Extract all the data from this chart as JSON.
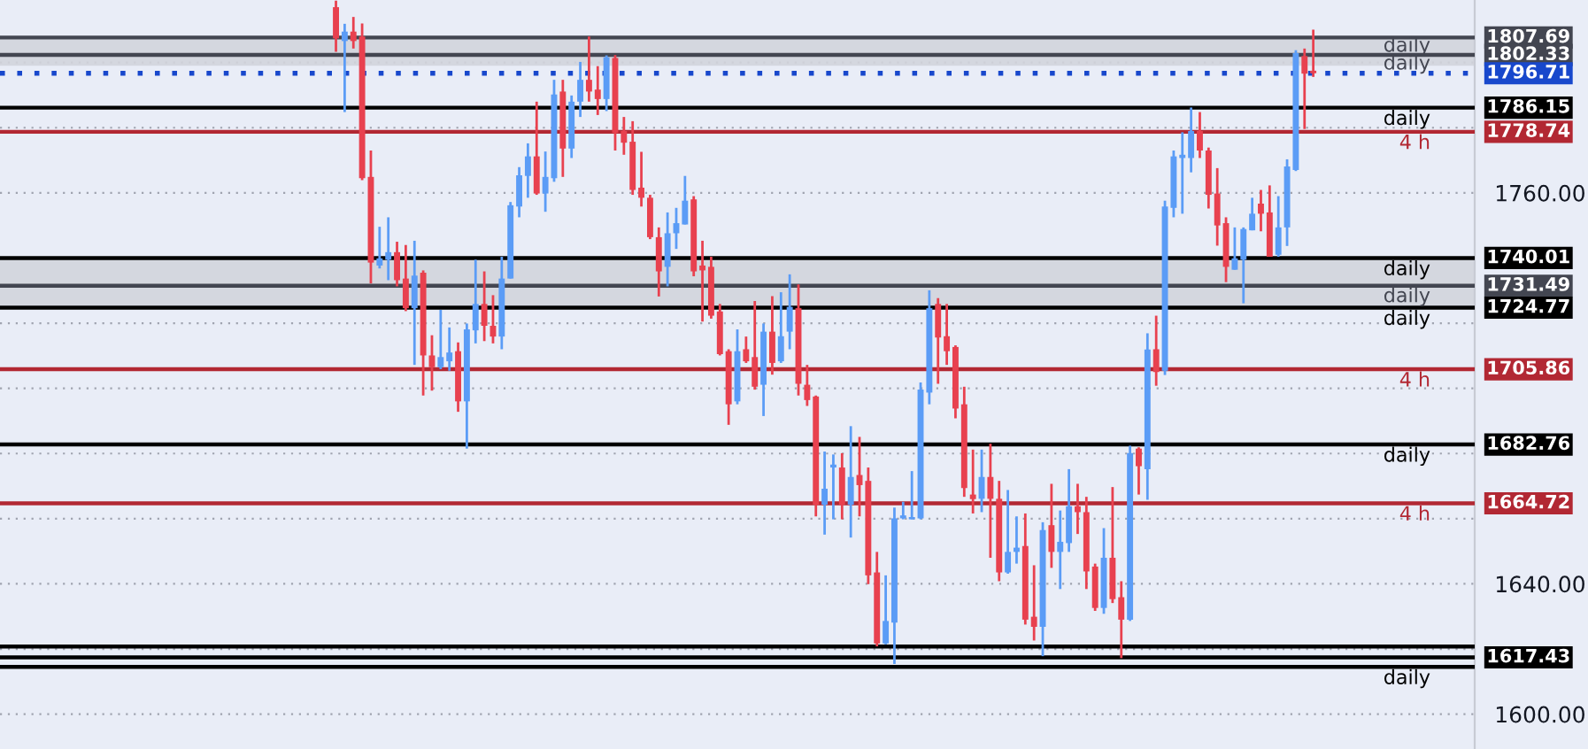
{
  "chart_data": {
    "type": "candlestick",
    "categories": [
      null,
      null,
      null,
      null,
      null,
      null,
      null,
      null,
      null,
      null,
      null,
      null,
      null,
      null,
      null,
      null,
      null,
      null,
      null,
      null,
      null,
      null,
      null,
      null,
      null,
      null,
      null,
      null,
      null,
      null,
      null,
      null,
      null,
      null,
      null,
      null,
      null,
      null,
      null,
      null,
      null,
      null,
      null,
      null,
      null,
      null,
      null,
      null,
      null,
      null,
      null,
      null,
      null,
      null,
      null,
      null,
      null,
      null,
      null,
      null,
      null,
      null,
      null,
      null,
      null,
      null,
      null,
      null,
      null,
      null,
      null,
      null,
      null,
      null,
      null,
      null,
      null,
      null,
      null,
      null,
      null,
      null,
      null,
      null,
      null,
      null,
      null,
      null,
      null,
      null,
      null,
      null,
      null,
      null,
      null,
      null,
      null,
      null,
      null,
      null,
      null,
      null,
      null,
      null,
      null,
      null,
      null,
      null,
      null,
      null,
      null,
      null,
      null,
      null,
      null,
      null,
      null,
      null,
      null,
      null,
      null,
      null,
      null,
      null,
      null,
      null,
      null,
      null,
      null,
      null,
      null,
      null,
      null,
      null,
      null,
      null,
      null,
      null,
      null,
      null,
      null,
      null,
      null,
      null,
      null,
      null,
      null,
      null,
      null,
      null,
      null,
      null,
      null,
      null,
      null,
      null,
      null,
      null,
      null,
      null,
      null,
      null,
      null,
      null,
      null,
      null,
      null,
      null,
      null
    ],
    "ohlc": [
      null,
      null,
      null,
      null,
      null,
      null,
      null,
      null,
      null,
      null,
      null,
      null,
      null,
      null,
      null,
      null,
      null,
      null,
      null,
      null,
      null,
      null,
      null,
      null,
      null,
      null,
      null,
      null,
      null,
      null,
      null,
      null,
      null,
      null,
      null,
      null,
      null,
      null,
      [
        1817,
        1819,
        1803.3,
        1807.4
      ],
      [
        1806.6,
        1811.9,
        1784.8,
        1809.5
      ],
      [
        1809.5,
        1814,
        1804.3,
        1806.6
      ],
      [
        1808,
        1812,
        1763.9,
        1764.5
      ],
      [
        1764.9,
        1773,
        1732.2,
        1738.6
      ],
      [
        1737.7,
        1749.6,
        1736.8,
        1739.9
      ],
      [
        1739.5,
        1752.5,
        1733.2,
        1741.8
      ],
      [
        1741.8,
        1745,
        1731.3,
        1733.2
      ],
      [
        1733.7,
        1744,
        1723.7,
        1724.6
      ],
      [
        1724.6,
        1745.3,
        1707.2,
        1734.6
      ],
      [
        1735.5,
        1736.2,
        1697.8,
        1710.1
      ],
      [
        1710.1,
        1716.3,
        1699.3,
        1706.5
      ],
      [
        1706.5,
        1724.1,
        1705.9,
        1709.6
      ],
      [
        1708.3,
        1718.7,
        1705.4,
        1711
      ],
      [
        1711.4,
        1714.1,
        1692.8,
        1696
      ],
      [
        1696,
        1719.9,
        1681.5,
        1718.1
      ],
      [
        1717.8,
        1739.5,
        1713.8,
        1725.9
      ],
      [
        1725.9,
        1735.9,
        1714.5,
        1719.2
      ],
      [
        1719.2,
        1728.6,
        1713.8,
        1715.9
      ],
      [
        1715.9,
        1740.4,
        1712,
        1733.7
      ],
      [
        1733.7,
        1757.2,
        1733.7,
        1756.2
      ],
      [
        1755.8,
        1767.9,
        1752.5,
        1765.4
      ],
      [
        1765.2,
        1775.2,
        1758.5,
        1771.2
      ],
      [
        1771.2,
        1788,
        1759.4,
        1759.8
      ],
      [
        1759.8,
        1772.7,
        1754.2,
        1764.9
      ],
      [
        1764.5,
        1794.7,
        1763.4,
        1790.2
      ],
      [
        1791.1,
        1794.7,
        1764.9,
        1773.6
      ],
      [
        1773.6,
        1789.9,
        1770.7,
        1788
      ],
      [
        1788,
        1800.2,
        1783.3,
        1794.7
      ],
      [
        1794.7,
        1808,
        1788,
        1791.1
      ],
      [
        1791.7,
        1798.9,
        1783.9,
        1788.8
      ],
      [
        1788.8,
        1802.2,
        1785.1,
        1801.6
      ],
      [
        1801.4,
        1802.3,
        1773,
        1778.4
      ],
      [
        1779,
        1783.3,
        1771.7,
        1775.4
      ],
      [
        1775.7,
        1782,
        1759.4,
        1760.9
      ],
      [
        1761.6,
        1772.6,
        1755.8,
        1758.5
      ],
      [
        1758.5,
        1759.4,
        1745.8,
        1746.4
      ],
      [
        1746.4,
        1749.4,
        1728.2,
        1735.9
      ],
      [
        1737.3,
        1754,
        1731.3,
        1747.6
      ],
      [
        1747.6,
        1755.4,
        1742.8,
        1750.7
      ],
      [
        1750.3,
        1765.2,
        1750.3,
        1757.6
      ],
      [
        1758,
        1759,
        1734.4,
        1735.9
      ],
      [
        1737.7,
        1745.3,
        1720.5,
        1736.2
      ],
      [
        1737.3,
        1740.4,
        1721.4,
        1722.3
      ],
      [
        1723.6,
        1725.9,
        1710.1,
        1710.5
      ],
      [
        1711.4,
        1712,
        1688.8,
        1695.1
      ],
      [
        1696,
        1718.1,
        1695.1,
        1711.4
      ],
      [
        1712,
        1715.9,
        1707.8,
        1708.3
      ],
      [
        1709.6,
        1726.8,
        1699.6,
        1700.5
      ],
      [
        1701.1,
        1719.9,
        1691.5,
        1717.4
      ],
      [
        1717.4,
        1728.3,
        1704.2,
        1707.8
      ],
      [
        1708.3,
        1729.5,
        1707.8,
        1716
      ],
      [
        1717.4,
        1735,
        1712,
        1725
      ],
      [
        1724.6,
        1731.9,
        1697.8,
        1701.4
      ],
      [
        1701.1,
        1707.2,
        1694.6,
        1696.4
      ],
      [
        1697.5,
        1697.8,
        1660.7,
        1664.3
      ],
      [
        1664.3,
        1680.6,
        1655.1,
        1669.2
      ],
      [
        1675.7,
        1679.7,
        1659.8,
        1676.6
      ],
      [
        1675.7,
        1680.1,
        1659.8,
        1664.3
      ],
      [
        1664.3,
        1688.4,
        1654.2,
        1672.8
      ],
      [
        1673.4,
        1685.1,
        1660.7,
        1670.3
      ],
      [
        1671.6,
        1675.7,
        1639.9,
        1642.6
      ],
      [
        1643.5,
        1649.8,
        1620.8,
        1621.7
      ],
      [
        1621.7,
        1642.6,
        1621.4,
        1628.6
      ],
      [
        1628.1,
        1663.4,
        1615.4,
        1660.1
      ],
      [
        1660.1,
        1665.2,
        1659.8,
        1661
      ],
      [
        1659.8,
        1674.6,
        1659.8,
        1660.5
      ],
      [
        1660.1,
        1701.8,
        1659.8,
        1699.6
      ],
      [
        1698.7,
        1730.1,
        1695.1,
        1724.6
      ],
      [
        1725.9,
        1727.7,
        1701.4,
        1715.6
      ],
      [
        1716,
        1725.9,
        1707.2,
        1711.4
      ],
      [
        1712.7,
        1713.2,
        1690.8,
        1693.8
      ],
      [
        1695.1,
        1700.5,
        1666.7,
        1669.4
      ],
      [
        1667.4,
        1681.2,
        1661.6,
        1666
      ],
      [
        1666.1,
        1681.2,
        1662,
        1672.8
      ],
      [
        1672.8,
        1683,
        1648,
        1666.1
      ],
      [
        1666.1,
        1671.6,
        1640.8,
        1643.5
      ],
      [
        1643.5,
        1668.8,
        1643.1,
        1649.8
      ],
      [
        1649.8,
        1660.7,
        1646.2,
        1651.1
      ],
      [
        1651.6,
        1661.6,
        1627.5,
        1629
      ],
      [
        1629.9,
        1645.7,
        1622.6,
        1626.8
      ],
      [
        1626.8,
        1658.9,
        1617.8,
        1656.5
      ],
      [
        1658,
        1670.7,
        1644.9,
        1649.8
      ],
      [
        1649.8,
        1662.5,
        1638.4,
        1652.9
      ],
      [
        1652.5,
        1675.2,
        1649.8,
        1663.8
      ],
      [
        1663.8,
        1670.7,
        1655.3,
        1662
      ],
      [
        1662,
        1666.7,
        1638.4,
        1643.8
      ],
      [
        1645.3,
        1646.2,
        1631.7,
        1632.6
      ],
      [
        1632.6,
        1657.1,
        1630.8,
        1648
      ],
      [
        1648,
        1669.7,
        1634.1,
        1635.3
      ],
      [
        1635.9,
        1640.8,
        1617.2,
        1629
      ],
      [
        1629,
        1682.4,
        1628.6,
        1680.1
      ],
      [
        1681.5,
        1681.9,
        1667.4,
        1676.1
      ],
      [
        1675.2,
        1716.9,
        1665.8,
        1711.9
      ],
      [
        1712,
        1722.3,
        1700.8,
        1705
      ],
      [
        1705.4,
        1757.6,
        1704.1,
        1755.8
      ],
      [
        1755.4,
        1773,
        1752.5,
        1771.2
      ],
      [
        1770.7,
        1778.6,
        1753.6,
        1771.7
      ],
      [
        1770.7,
        1786.2,
        1766.3,
        1779
      ],
      [
        1779,
        1784.8,
        1770.7,
        1773
      ],
      [
        1773,
        1773.9,
        1755.2,
        1759.4
      ],
      [
        1759.8,
        1767.6,
        1743.8,
        1750
      ],
      [
        1750.7,
        1752.5,
        1732.6,
        1737.3
      ],
      [
        1736.4,
        1749.4,
        1736.4,
        1739.9
      ],
      [
        1739.5,
        1749.4,
        1726.1,
        1748.9
      ],
      [
        1748.5,
        1758.5,
        1748.5,
        1753.6
      ],
      [
        1756.7,
        1760.9,
        1748.2,
        1753.6
      ],
      [
        1754,
        1762.3,
        1740.4,
        1740.4
      ],
      [
        1741,
        1759,
        1740.4,
        1749.4
      ],
      [
        1749.4,
        1770.3,
        1743.7,
        1768.1
      ],
      [
        1767,
        1803.8,
        1766.7,
        1802.9
      ],
      [
        1802,
        1804.3,
        1779.6,
        1796.6
      ],
      [
        1797.5,
        1810.1,
        1795.6,
        1796.71
      ],
      null,
      null,
      null,
      null,
      null,
      null,
      null,
      null,
      null,
      null,
      null,
      null,
      null,
      null,
      null,
      null,
      null,
      null
    ],
    "colors": [
      null,
      null,
      null,
      null,
      null,
      null,
      null,
      null,
      null,
      null,
      null,
      null,
      null,
      null,
      null,
      null,
      null,
      null,
      null,
      null,
      null,
      null,
      null,
      null,
      null,
      null,
      null,
      null,
      null,
      null,
      null,
      null,
      null,
      null,
      null,
      null,
      null,
      null,
      "#e8414f",
      "#5b9cf6",
      "#e8414f",
      "#e8414f",
      "#e8414f",
      "#5b9cf6",
      "#5b9cf6",
      "#e8414f",
      "#e8414f",
      "#5b9cf6",
      "#e8414f",
      "#e8414f",
      "#5b9cf6",
      "#5b9cf6",
      "#e8414f",
      "#5b9cf6",
      "#5b9cf6",
      "#e8414f",
      "#e8414f",
      "#5b9cf6",
      "#5b9cf6",
      "#5b9cf6",
      "#5b9cf6",
      "#e8414f",
      "#5b9cf6",
      "#5b9cf6",
      "#e8414f",
      "#5b9cf6",
      "#5b9cf6",
      "#e8414f",
      "#e8414f",
      "#5b9cf6",
      "#e8414f",
      "#e8414f",
      "#e8414f",
      "#e8414f",
      "#e8414f",
      "#e8414f",
      "#5b9cf6",
      "#5b9cf6",
      "#5b9cf6",
      "#e8414f",
      "#e8414f",
      "#e8414f",
      "#e8414f",
      "#e8414f",
      "#5b9cf6",
      "#e8414f",
      "#e8414f",
      "#5b9cf6",
      "#e8414f",
      "#5b9cf6",
      "#5b9cf6",
      "#e8414f",
      "#e8414f",
      "#e8414f",
      "#5b9cf6",
      "#5b9cf6",
      "#e8414f",
      "#5b9cf6",
      "#e8414f",
      "#e8414f",
      "#e8414f",
      "#5b9cf6",
      "#5b9cf6",
      "#5b9cf6",
      "#5b9cf6",
      "#5b9cf6",
      "#5b9cf6",
      "#e8414f",
      "#e8414f",
      "#e8414f",
      "#e8414f",
      "#e8414f",
      "#5b9cf6",
      "#e8414f",
      "#e8414f",
      "#5b9cf6",
      "#5b9cf6",
      "#e8414f",
      "#e8414f",
      "#5b9cf6",
      "#e8414f",
      "#5b9cf6",
      "#5b9cf6",
      "#e8414f",
      "#e8414f",
      "#e8414f",
      "#5b9cf6",
      "#e8414f",
      "#e8414f",
      "#5b9cf6",
      "#e8414f",
      "#5b9cf6",
      "#e8414f",
      "#5b9cf6",
      "#5b9cf6",
      "#5b9cf6",
      "#5b9cf6",
      "#e8414f",
      "#e8414f",
      "#e8414f",
      "#e8414f",
      "#5b9cf6",
      "#5b9cf6",
      "#5b9cf6",
      "#e8414f",
      "#e8414f",
      "#5b9cf6",
      "#5b9cf6",
      "#5b9cf6",
      "#e8414f",
      "#e8414f",
      null,
      null,
      null,
      null,
      null,
      null,
      null,
      null,
      null,
      null,
      null,
      null,
      null,
      null,
      null,
      null,
      null,
      null
    ],
    "ylim": [
      1589.3,
      1819.2
    ],
    "yticks": [
      {
        "value": 1600,
        "label": "1600.00"
      },
      {
        "value": 1620,
        "label": null
      },
      {
        "value": 1640,
        "label": "1640.00"
      },
      {
        "value": 1660,
        "label": null
      },
      {
        "value": 1680,
        "label": null
      },
      {
        "value": 1700,
        "label": null
      },
      {
        "value": 1720,
        "label": null
      },
      {
        "value": 1740,
        "label": null
      },
      {
        "value": 1760,
        "label": "1760.00"
      },
      {
        "value": 1780,
        "label": null
      },
      {
        "value": 1800,
        "label": null
      }
    ],
    "tick_labels": "y",
    "grid": "y",
    "bands": [
      {
        "axis": "y",
        "from": 1799,
        "to": 1807.69,
        "label": null,
        "color": "#d1d4dc"
      },
      {
        "axis": "y",
        "from": 1724.77,
        "to": 1740.01,
        "label": null,
        "color": "#d1d4dc"
      }
    ],
    "ref_lines": [
      {
        "axis": "y",
        "value": 1807.69,
        "label": "daily",
        "color": "#434651",
        "line_style": "solid"
      },
      {
        "axis": "y",
        "value": 1802.33,
        "label": "daily",
        "color": "#434651",
        "line_style": "solid"
      },
      {
        "axis": "y",
        "value": 1796.71,
        "label": null,
        "color": "#1848cc",
        "line_style": "dotted"
      },
      {
        "axis": "y",
        "value": 1786.15,
        "label": "daily",
        "color": "#000000",
        "line_style": "solid"
      },
      {
        "axis": "y",
        "value": 1778.74,
        "label": "4 h",
        "color": "#b22833",
        "line_style": "solid"
      },
      {
        "axis": "y",
        "value": 1740.01,
        "label": "daily",
        "color": "#000000",
        "line_style": "solid"
      },
      {
        "axis": "y",
        "value": 1731.49,
        "label": "daily",
        "color": "#434651",
        "line_style": "solid"
      },
      {
        "axis": "y",
        "value": 1724.77,
        "label": "daily",
        "color": "#000000",
        "line_style": "solid"
      },
      {
        "axis": "y",
        "value": 1705.86,
        "label": "4 h",
        "color": "#b22833",
        "line_style": "solid"
      },
      {
        "axis": "y",
        "value": 1682.76,
        "label": "daily",
        "color": "#000000",
        "line_style": "solid"
      },
      {
        "axis": "y",
        "value": 1664.72,
        "label": "4 h",
        "color": "#b22833",
        "line_style": "solid"
      },
      {
        "axis": "y",
        "value": 1617.43,
        "label": null,
        "color": "#000000",
        "line_style": "solid"
      },
      {
        "axis": "y",
        "value": 1620.78,
        "label": null,
        "color": "#000000",
        "line_style": "solid"
      },
      {
        "axis": "y",
        "value": 1614.5,
        "label": "daily",
        "color": "#000000",
        "line_style": "solid"
      }
    ],
    "annotations": [
      "1807.69",
      "1802.33",
      "1796.71",
      "1786.15",
      "1778.74",
      "1740.01",
      "1731.49",
      "1724.77",
      "1705.86",
      "1682.76",
      "1664.72",
      "1617.43"
    ]
  }
}
